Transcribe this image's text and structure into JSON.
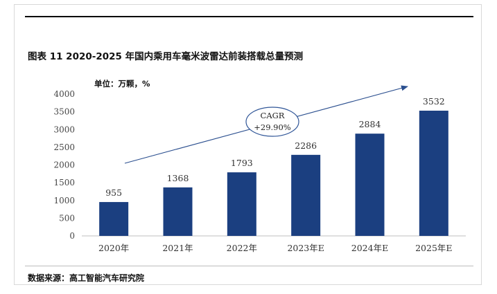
{
  "header": {
    "figure_title": "图表 11   2020-2025 年国内乘用车毫米波雷达前装搭载总量预测",
    "unit_label": "单位：万颗，%",
    "source_label": "数据来源：高工智能汽车研究院"
  },
  "colors": {
    "bar": "#1b3f80",
    "arrow": "#2b4f8f",
    "ellipse": "#2f5597",
    "axis": "#bfbfbf"
  },
  "chart_data": {
    "type": "bar",
    "categories": [
      "2020年",
      "2021年",
      "2022年",
      "2023年E",
      "2024年E",
      "2025年E"
    ],
    "values": [
      955,
      1368,
      1793,
      2286,
      2884,
      3532
    ],
    "ylim": [
      0,
      4000
    ],
    "yticks": [
      0,
      500,
      1000,
      1500,
      2000,
      2500,
      3000,
      3500,
      4000
    ],
    "grid": false,
    "annotation": {
      "line1": "CAGR",
      "line2": "+29.90%"
    }
  }
}
